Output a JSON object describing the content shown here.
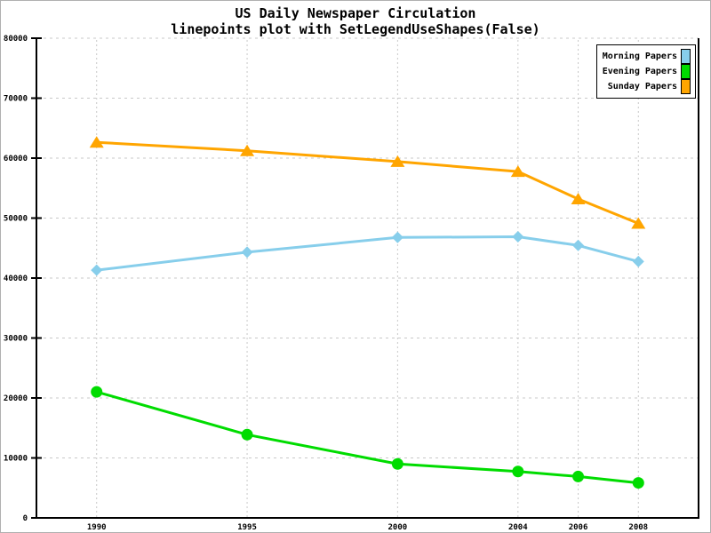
{
  "chart_data": {
    "type": "line",
    "title": "US Daily Newspaper Circulation",
    "subtitle": "linepoints plot with SetLegendUseShapes(False)",
    "x": [
      1990,
      1995,
      2000,
      2004,
      2006,
      2008
    ],
    "x_tick_labels": [
      "1990",
      "1995",
      "2000",
      "2004",
      "2006",
      "2008"
    ],
    "series": [
      {
        "name": "Morning Papers",
        "color": "#87CEEB",
        "marker": "diamond",
        "values": [
          41311,
          44310,
          46772,
          46887,
          45441,
          42757
        ]
      },
      {
        "name": "Evening Papers",
        "color": "#00DC00",
        "marker": "circle",
        "values": [
          21017,
          13883,
          9000,
          7738,
          6900,
          5840
        ]
      },
      {
        "name": "Sunday Papers",
        "color": "#FFA500",
        "marker": "triangle",
        "values": [
          62635,
          61229,
          59421,
          57754,
          53179,
          49115
        ]
      }
    ],
    "xlim": [
      1988,
      2010
    ],
    "ylim": [
      0,
      80000
    ],
    "y_ticks": [
      0,
      10000,
      20000,
      30000,
      40000,
      50000,
      60000,
      70000,
      80000
    ],
    "y_tick_labels": [
      "0",
      "10000",
      "20000",
      "30000",
      "40000",
      "50000",
      "60000",
      "70000",
      "80000"
    ],
    "xlabel": "",
    "ylabel": "",
    "grid": true,
    "gridline_color": "#c8c8c8",
    "axis_color": "#000000",
    "background_color": "#ffffff",
    "legend_position": "top-right",
    "legend_labels": [
      "Morning Papers",
      "Evening Papers",
      "Sunday Papers"
    ]
  }
}
